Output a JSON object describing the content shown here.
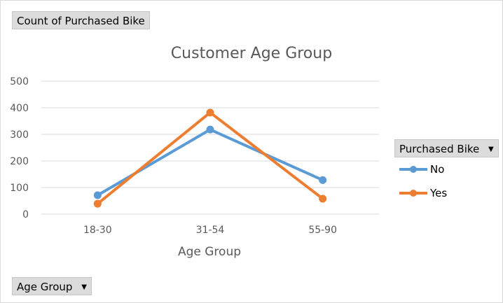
{
  "pivot": {
    "value_field": "Count of Purchased Bike",
    "legend_field": "Purchased Bike",
    "axis_field": "Age Group"
  },
  "chart_data": {
    "type": "line",
    "title": "Customer Age Group",
    "xlabel": "Age Group",
    "ylabel": "",
    "categories": [
      "18-30",
      "31-54",
      "55-90"
    ],
    "ylim": [
      0,
      500
    ],
    "yticks": [
      0,
      100,
      200,
      300,
      400,
      500
    ],
    "grid": true,
    "series": [
      {
        "name": "No",
        "values": [
          71,
          318,
          128
        ],
        "color": "#5b9bd5"
      },
      {
        "name": "Yes",
        "values": [
          39,
          382,
          58
        ],
        "color": "#ed7d31"
      }
    ]
  },
  "icons": {
    "dropdown": "dropdown-arrow-icon"
  }
}
